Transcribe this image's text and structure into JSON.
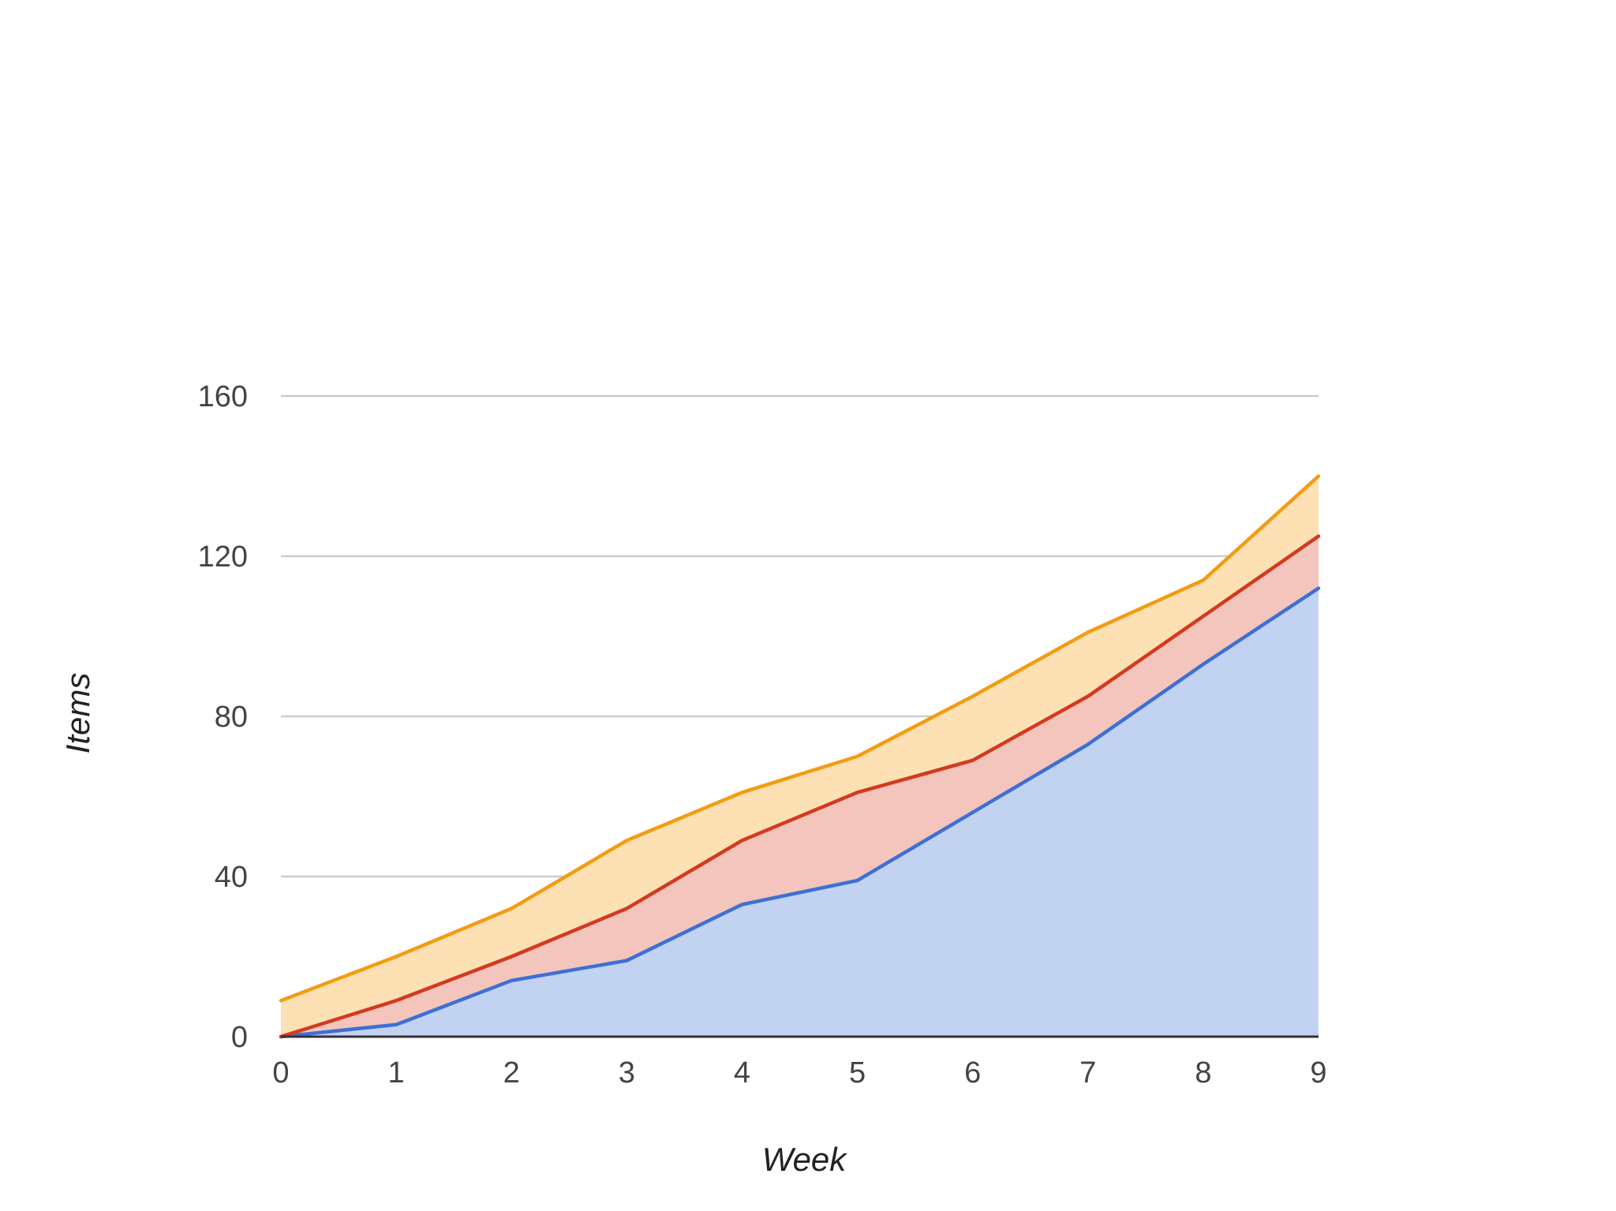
{
  "chart_data": {
    "type": "area",
    "stacked": true,
    "x": [
      0,
      1,
      2,
      3,
      4,
      5,
      6,
      7,
      8,
      9
    ],
    "series": [
      {
        "color": "#3d6fd6",
        "fill_color": "#c2d2f1",
        "values": [
          0,
          3,
          14,
          19,
          33,
          39,
          56,
          73,
          93,
          112
        ]
      },
      {
        "color": "#d33a1f",
        "fill_color": "#f3c5bc",
        "values": [
          0,
          6,
          6,
          13,
          16,
          22,
          13,
          12,
          12,
          13
        ]
      },
      {
        "color": "#f39c12",
        "fill_color": "#fde0b3",
        "values": [
          9,
          11,
          12,
          17,
          12,
          9,
          16,
          16,
          9,
          15
        ]
      }
    ],
    "xlabel": "Week",
    "ylabel": "Items",
    "xlim": [
      0,
      9
    ],
    "ylim": [
      0,
      160
    ],
    "x_ticks": [
      "0",
      "1",
      "2",
      "3",
      "4",
      "5",
      "6",
      "7",
      "8",
      "9"
    ],
    "y_ticks": [
      "0",
      "40",
      "80",
      "120",
      "160"
    ],
    "grid": true,
    "legend": "none"
  }
}
